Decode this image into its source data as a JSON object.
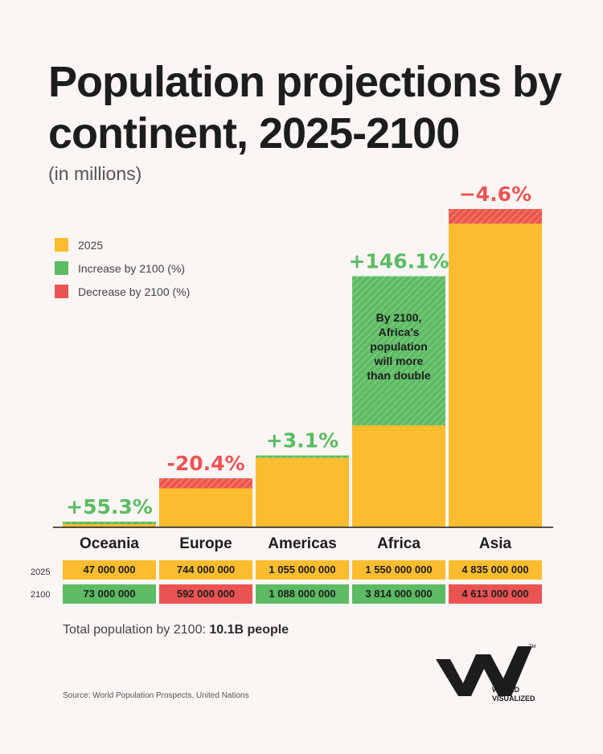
{
  "header": {
    "title": "Population projections by continent, 2025-2100",
    "subtitle": "(in millions)"
  },
  "legend": [
    {
      "label": "2025",
      "color": "#fbbd2f"
    },
    {
      "label": "Increase by 2100 (%)",
      "color": "#5cbb63"
    },
    {
      "label": "Decrease by 2100 (%)",
      "color": "#ec5453"
    }
  ],
  "colors": {
    "base": "#fbbd2f",
    "increase": "#5cbb63",
    "decrease": "#ec5453"
  },
  "annotation": "By 2100, Africa's population will more than double",
  "chart_data": {
    "type": "bar",
    "title": "Population projections by continent, 2025-2100",
    "subtitle": "(in millions)",
    "categories": [
      "Oceania",
      "Europe",
      "Americas",
      "Africa",
      "Asia"
    ],
    "series": [
      {
        "name": "2025",
        "values": [
          47,
          744,
          1055,
          1550,
          4835
        ]
      },
      {
        "name": "2100",
        "values": [
          73,
          592,
          1088,
          3814,
          4613
        ]
      }
    ],
    "change_labels": [
      "+55.3%",
      "-20.4%",
      "+3.1%",
      "+146.1%",
      "−4.6%"
    ],
    "ylim": [
      0,
      4835
    ]
  },
  "table": {
    "row_labels": [
      "2025",
      "2100"
    ],
    "values_2025": [
      "47 000 000",
      "744 000 000",
      "1 055 000 000",
      "1 550 000 000",
      "4 835 000 000"
    ],
    "values_2100": [
      "73 000 000",
      "592 000 000",
      "1 088 000 000",
      "3 814 000 000",
      "4 613 000 000"
    ]
  },
  "footer": {
    "total_prefix": "Total population by 2100:",
    "total_value": "10.1B people",
    "source": "Source: World Population Prospects, United Nations",
    "logo_line1": "WORLD",
    "logo_line2": "VISUALIZED",
    "trademark": "TM"
  }
}
